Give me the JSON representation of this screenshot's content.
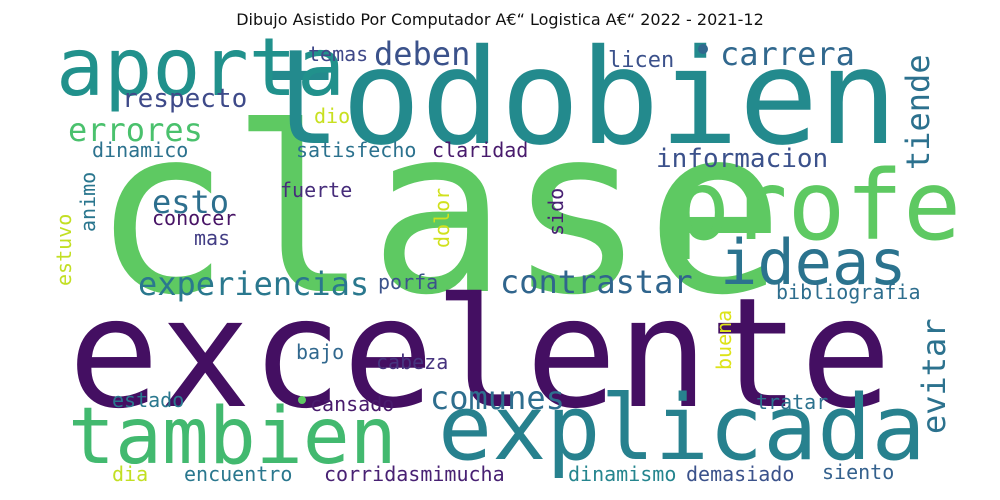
{
  "title": "Dibujo Asistido Por Computador A€“ Logistica A€“ 2022 - 2021-12",
  "words": [
    {
      "text": "clase",
      "color": "#5ec962"
    },
    {
      "text": "excelente",
      "color": "#440f62"
    },
    {
      "text": "todobien",
      "color": "#238a8d"
    },
    {
      "text": "profe",
      "color": "#5ec962"
    },
    {
      "text": "aporta",
      "color": "#21918c"
    },
    {
      "text": "tambien",
      "color": "#42b96f"
    },
    {
      "text": "explicada",
      "color": "#27818e"
    },
    {
      "text": "ideas",
      "color": "#2b738e"
    },
    {
      "text": "experiencias",
      "color": "#2a788e"
    },
    {
      "text": "contrastar",
      "color": "#30658d"
    },
    {
      "text": "carrera",
      "color": "#31688e"
    },
    {
      "text": "errores",
      "color": "#4ac16d"
    },
    {
      "text": "deben",
      "color": "#3b528b"
    },
    {
      "text": "respecto",
      "color": "#3e4a89"
    },
    {
      "text": "esto",
      "color": "#2d6f8e"
    },
    {
      "text": "informacion",
      "color": "#3b518b"
    },
    {
      "text": "tiende",
      "color": "#2c718e"
    },
    {
      "text": "comunes",
      "color": "#2e6e8e"
    },
    {
      "text": "evitar",
      "color": "#2c728e"
    },
    {
      "text": "bibliografia",
      "color": "#2e6e8e"
    },
    {
      "text": "temas",
      "color": "#3f4889"
    },
    {
      "text": "licen",
      "color": "#3b518b"
    },
    {
      "text": "dio",
      "color": "#c8e020"
    },
    {
      "text": "dinamico",
      "color": "#2c728e"
    },
    {
      "text": "satisfecho",
      "color": "#2c728e"
    },
    {
      "text": "claridad",
      "color": "#481a6c"
    },
    {
      "text": "fuerte",
      "color": "#472d7b"
    },
    {
      "text": "conocer",
      "color": "#471365"
    },
    {
      "text": "mas",
      "color": "#433e85"
    },
    {
      "text": "animo",
      "color": "#2a768e"
    },
    {
      "text": "estuvo",
      "color": "#c2df23"
    },
    {
      "text": "dolor",
      "color": "#d0e11c"
    },
    {
      "text": "sido",
      "color": "#482173"
    },
    {
      "text": "porfa",
      "color": "#3b528b"
    },
    {
      "text": "bajo",
      "color": "#31688e"
    },
    {
      "text": "cabeza",
      "color": "#46337e"
    },
    {
      "text": "buena",
      "color": "#dde318"
    },
    {
      "text": "estado",
      "color": "#2a788e"
    },
    {
      "text": "cansado",
      "color": "#481a6c"
    },
    {
      "text": "tratar",
      "color": "#2c728e"
    },
    {
      "text": "dia",
      "color": "#c2df23"
    },
    {
      "text": "encuentro",
      "color": "#2a778e"
    },
    {
      "text": "corridasmimucha",
      "color": "#482173"
    },
    {
      "text": "dinamismo",
      "color": "#25858e"
    },
    {
      "text": "demasiado",
      "color": "#3b528b"
    },
    {
      "text": "siento",
      "color": "#34618d"
    }
  ]
}
